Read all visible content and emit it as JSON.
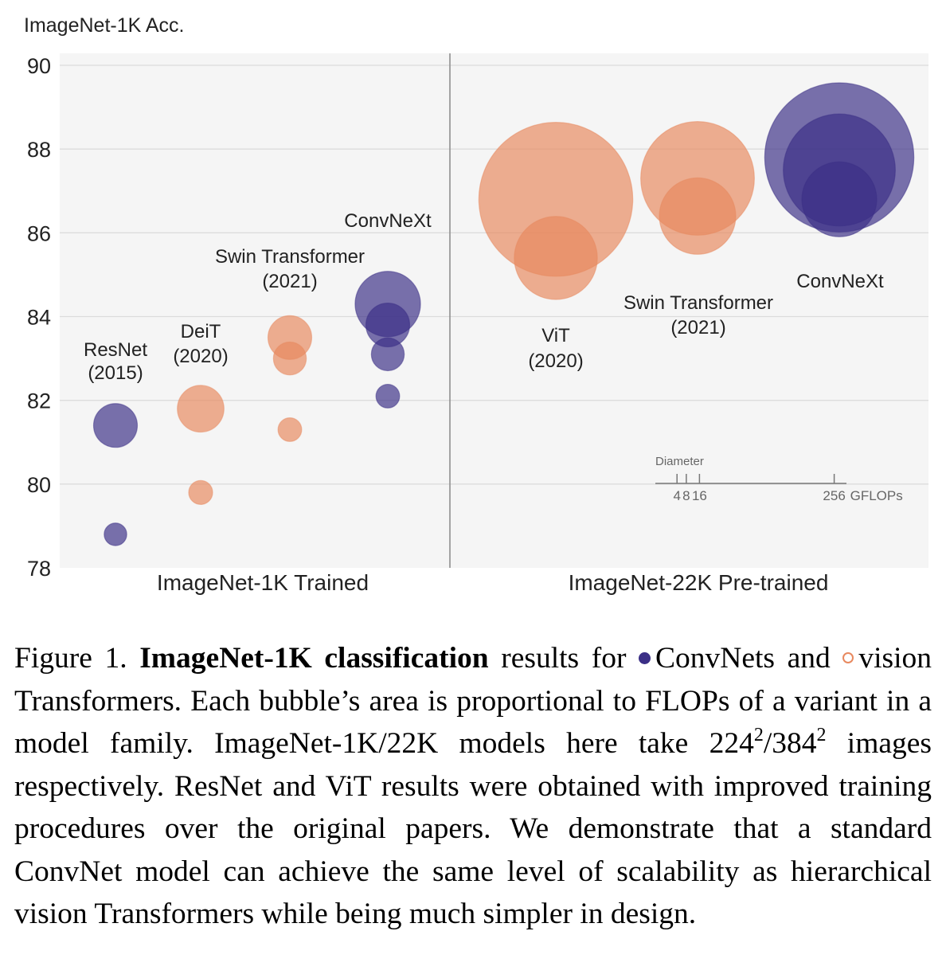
{
  "chart_data": {
    "type": "scatter",
    "subtype": "bubble",
    "ylabel": "ImageNet-1K Acc.",
    "ylim": [
      78,
      90
    ],
    "yticks": [
      78,
      80,
      82,
      84,
      86,
      88,
      90
    ],
    "grid": true,
    "panels": [
      "ImageNet-1K Trained",
      "ImageNet-22K Pre-trained"
    ],
    "colors": {
      "convnet": "#3b2f86",
      "transformer": "#e8895f"
    },
    "families": [
      {
        "name": "ResNet",
        "year": "(2015)",
        "panel": 0,
        "kind": "convnet",
        "slot": 0,
        "points": [
          {
            "acc": 81.4,
            "gflops": 15.4
          },
          {
            "acc": 78.8,
            "gflops": 4.1
          }
        ]
      },
      {
        "name": "DeiT",
        "year": "(2020)",
        "panel": 0,
        "kind": "transformer",
        "slot": 1,
        "points": [
          {
            "acc": 81.8,
            "gflops": 17.5
          },
          {
            "acc": 79.8,
            "gflops": 4.6
          }
        ]
      },
      {
        "name": "Swin Transformer",
        "year": "(2021)",
        "panel": 0,
        "kind": "transformer",
        "slot": 2,
        "points": [
          {
            "acc": 83.5,
            "gflops": 15.4
          },
          {
            "acc": 83.0,
            "gflops": 8.7
          },
          {
            "acc": 81.3,
            "gflops": 4.5
          }
        ]
      },
      {
        "name": "ConvNeXt",
        "year": "",
        "panel": 0,
        "kind": "convnet",
        "slot": 3,
        "points": [
          {
            "acc": 84.3,
            "gflops": 34.4
          },
          {
            "acc": 83.8,
            "gflops": 15.4
          },
          {
            "acc": 83.1,
            "gflops": 8.7
          },
          {
            "acc": 82.1,
            "gflops": 4.5
          }
        ]
      },
      {
        "name": "ViT",
        "year": "(2020)",
        "panel": 1,
        "kind": "transformer",
        "slot": 0,
        "points": [
          {
            "acc": 86.8,
            "gflops": 190.7
          },
          {
            "acc": 85.4,
            "gflops": 55.5
          }
        ]
      },
      {
        "name": "Swin Transformer",
        "year": "(2021)",
        "panel": 1,
        "kind": "transformer",
        "slot": 1,
        "points": [
          {
            "acc": 87.3,
            "gflops": 103.9
          },
          {
            "acc": 86.4,
            "gflops": 47.0
          }
        ]
      },
      {
        "name": "ConvNeXt",
        "year": "",
        "panel": 1,
        "kind": "convnet",
        "slot": 2,
        "points": [
          {
            "acc": 87.8,
            "gflops": 179.0
          },
          {
            "acc": 87.5,
            "gflops": 101.0
          },
          {
            "acc": 86.8,
            "gflops": 45.1
          }
        ]
      }
    ],
    "size_legend": {
      "title": "Diameter",
      "ticks": [
        4,
        8,
        16,
        256
      ],
      "unit": "GFLOPs"
    }
  },
  "caption": {
    "figure_label": "Figure 1.",
    "bold_title": "ImageNet-1K classification",
    "text_1": " results for ",
    "convnet_label": "ConvNets and",
    "transformer_label": "vision Transformers. Each bubble’s area is proportional to FLOPs of a variant in a model family.  ImageNet-1K/22K models here take 224",
    "sup_1": "2",
    "text_2": "/384",
    "sup_2": "2",
    "text_3": " images respectively. ResNet and ViT results were obtained with improved training procedures over the original papers. We demonstrate that a standard ConvNet model can achieve the same level of scalability as hierarchical vision Transformers while being much simpler in design."
  }
}
